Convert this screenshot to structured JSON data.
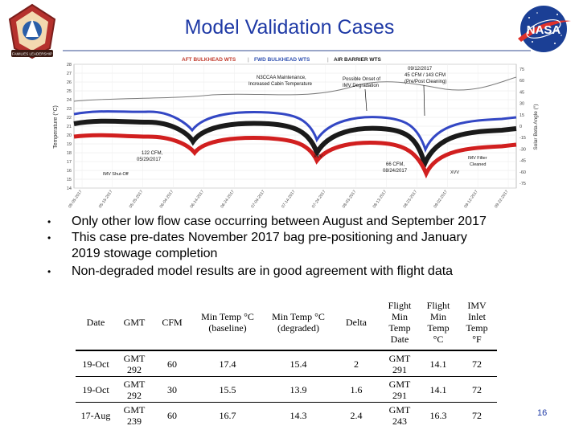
{
  "slide": {
    "title": "Model Validation Cases",
    "page_number": "16"
  },
  "logo_left": {
    "text": "FAMILIES LEADERSHIP",
    "icon": "mission-patch-icon"
  },
  "logo_right": {
    "text": "NASA",
    "icon": "nasa-meatball-icon"
  },
  "chart": {
    "legend": [
      "AFT BULKHEAD WTS",
      "FWD BULKHEAD WTS",
      "AIR BARRIER WTS"
    ],
    "ylabel_left": "Temperature (°C)",
    "ylabel_right": "Solar Beta Angle (°)",
    "left_ticks": [
      "28",
      "27",
      "26",
      "25",
      "24",
      "23",
      "22",
      "21",
      "20",
      "19",
      "18",
      "17",
      "16",
      "15",
      "14"
    ],
    "right_ticks": [
      "75",
      "60",
      "45",
      "30",
      "15",
      "0",
      "-15",
      "-30",
      "-45",
      "-60",
      "-75"
    ],
    "dates": [
      "05-05-2017",
      "05-15-2017",
      "05-25-2017",
      "06-04-2017",
      "06-14-2017",
      "06-24-2017",
      "07-04-2017",
      "07-14-2017",
      "07-24-2017",
      "08-03-2017",
      "08-13-2017",
      "08-23-2017",
      "09-02-2017",
      "09-12-2017",
      "09-22-2017"
    ],
    "annotations": {
      "a1_l1": "N3CCAA Maintenance,",
      "a1_l2": "Increased Cabin Temperature",
      "a2_l1": "Possible Onset of",
      "a2_l2": "IMV Degradation",
      "a3_l1": "09/12/2017",
      "a3_l2": "45 CFM / 143 CFM",
      "a3_l3": "(Pre/Post Cleaning)",
      "a4_l1": "122 CFM,",
      "a4_l2": "05/29/2017",
      "a5": "IMV Shut-Off",
      "a6": "XVV",
      "a7_l1": "66 CFM,",
      "a7_l2": "08/24/2017",
      "a8": "XVV",
      "a9_l1": "IMV Filter",
      "a9_l2": "Cleaned"
    }
  },
  "bullets": [
    "Only other low flow case occurring between August and September 2017",
    "This case pre-dates November 2017 bag pre-positioning and January",
    "2019 stowage completion",
    "Non-degraded model results are in good agreement with flight data"
  ],
  "table": {
    "headers": {
      "date": "Date",
      "gmt": "GMT",
      "cfm": "CFM",
      "min_base_1": "Min Temp °C",
      "min_base_2": "(baseline)",
      "min_deg_1": "Min Temp °C",
      "min_deg_2": "(degraded)",
      "delta": "Delta",
      "flight_date_1": "Flight",
      "flight_date_2": "Min",
      "flight_date_3": "Temp",
      "flight_date_4": "Date",
      "flight_temp_1": "Flight",
      "flight_temp_2": "Min",
      "flight_temp_3": "Temp",
      "flight_temp_4": "°C",
      "imv_1": "IMV",
      "imv_2": "Inlet",
      "imv_3": "Temp",
      "imv_4": "°F"
    },
    "rows": [
      {
        "date": "19-Oct",
        "gmt_1": "GMT",
        "gmt_2": "292",
        "cfm": "60",
        "min_base": "17.4",
        "min_deg": "15.4",
        "delta": "2",
        "fdate_1": "GMT",
        "fdate_2": "291",
        "ftemp": "14.1",
        "imv": "72"
      },
      {
        "date": "19-Oct",
        "gmt_1": "GMT",
        "gmt_2": "292",
        "cfm": "30",
        "min_base": "15.5",
        "min_deg": "13.9",
        "delta": "1.6",
        "fdate_1": "GMT",
        "fdate_2": "291",
        "ftemp": "14.1",
        "imv": "72"
      },
      {
        "date": "17-Aug",
        "gmt_1": "GMT",
        "gmt_2": "239",
        "cfm": "60",
        "min_base": "16.7",
        "min_deg": "14.3",
        "delta": "2.4",
        "fdate_1": "GMT",
        "fdate_2": "243",
        "ftemp": "16.3",
        "imv": "72"
      }
    ]
  }
}
